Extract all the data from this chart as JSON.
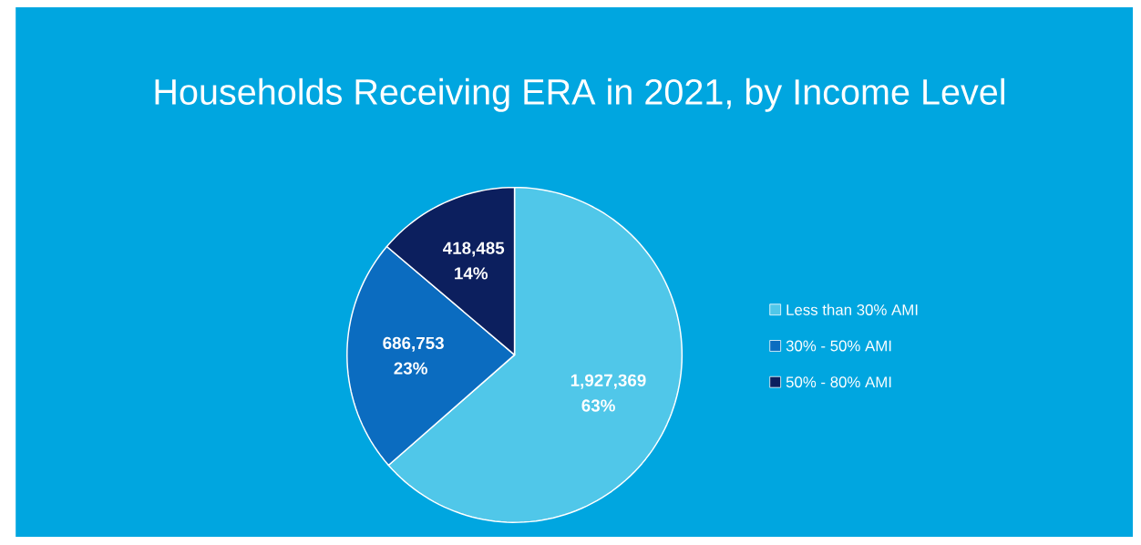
{
  "chart_data": {
    "type": "pie",
    "title": "Households Receiving ERA in 2021, by Income Level",
    "categories": [
      "Less than 30% AMI",
      "30% - 50% AMI",
      "50% - 80% AMI"
    ],
    "values": [
      1927369,
      686753,
      418485
    ],
    "colors": [
      "#50c7e9",
      "#0b6cc0",
      "#0c1f5e"
    ],
    "value_labels": [
      "1,927,369 63%",
      "686,753 23%",
      "418,485 14%"
    ],
    "legend": "right"
  }
}
